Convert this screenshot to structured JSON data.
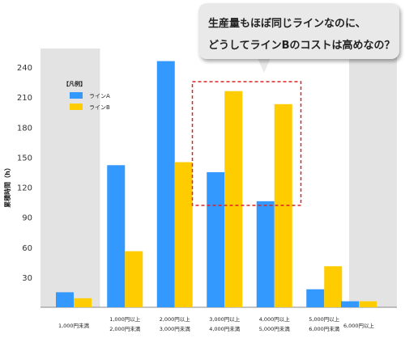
{
  "chart_data": {
    "type": "bar",
    "ylabel": "累積時間（h）",
    "ylim": [
      0,
      255
    ],
    "yticks": [
      30,
      60,
      90,
      120,
      150,
      180,
      210,
      240
    ],
    "categories": [
      [
        "1,000円未満"
      ],
      [
        "1,000円以上",
        "2,000円未満"
      ],
      [
        "2,000円以上",
        "3,000円未満"
      ],
      [
        "3,000円以上",
        "4,000円未満"
      ],
      [
        "4,000円以上",
        "5,000円未満"
      ],
      [
        "5,000円以上",
        "6,000円未満"
      ],
      [
        "6,000円以上"
      ]
    ],
    "series": [
      {
        "name": "ラインA",
        "color": "#3399ff",
        "values": [
          15,
          142,
          246,
          135,
          106,
          18,
          6
        ]
      },
      {
        "name": "ラインB",
        "color": "#ffcc00",
        "values": [
          9,
          56,
          145,
          216,
          203,
          41,
          6
        ]
      }
    ],
    "legend_title": "【凡例】",
    "legend_position": "top-left",
    "shaded_categories": [
      0,
      6
    ],
    "highlight_categories": [
      3,
      4
    ],
    "highlight_color": "#dd2222"
  },
  "callout": {
    "line1": "生産量もほぼ同じラインなのに、",
    "line2": "どうしてラインBのコストは高めなの？"
  }
}
